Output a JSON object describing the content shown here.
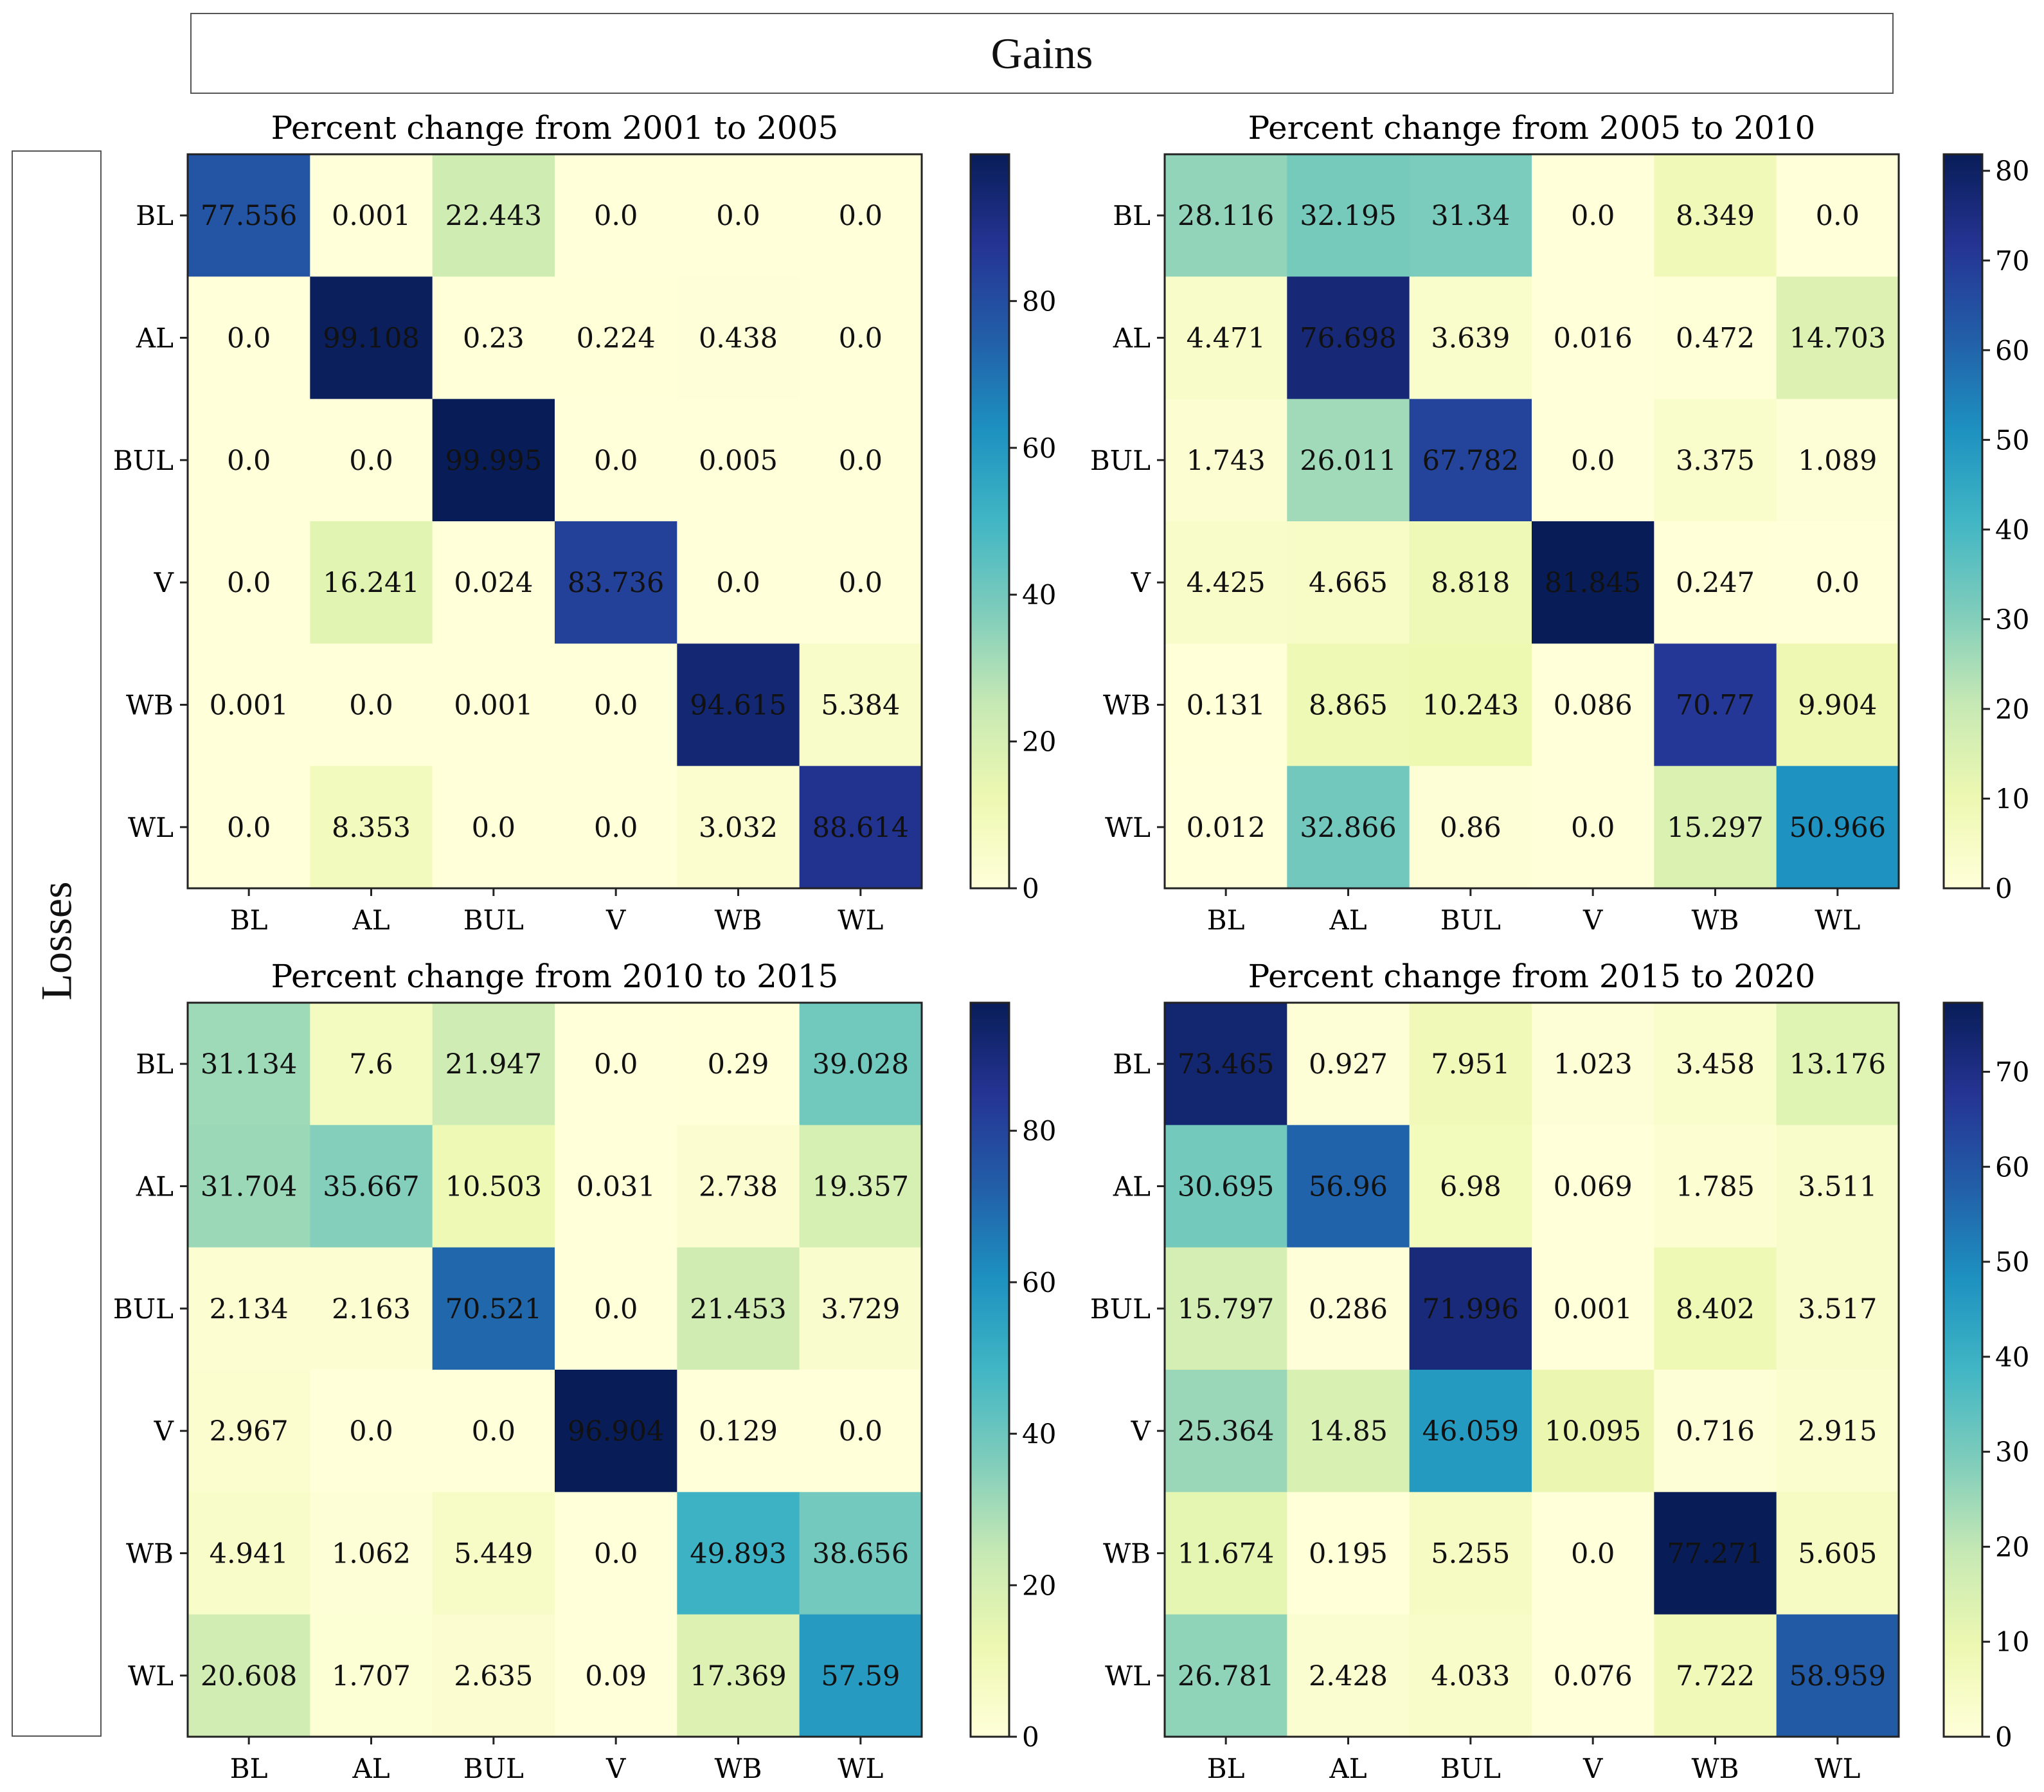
{
  "figure": {
    "gains_label": "Gains",
    "losses_label": "Losses"
  },
  "chart_data": [
    {
      "type": "heatmap",
      "title": "Percent change from 2001 to 2005",
      "x_categories": [
        "BL",
        "AL",
        "BUL",
        "V",
        "WB",
        "WL"
      ],
      "y_categories": [
        "BL",
        "AL",
        "BUL",
        "V",
        "WB",
        "WL"
      ],
      "value_labels": [
        [
          "77.556",
          "0.001",
          "22.443",
          "0.0",
          "0.0",
          "0.0"
        ],
        [
          "0.0",
          "99.108",
          "0.23",
          "0.224",
          "0.438",
          "0.0"
        ],
        [
          "0.0",
          "0.0",
          "99.995",
          "0.0",
          "0.005",
          "0.0"
        ],
        [
          "0.0",
          "16.241",
          "0.024",
          "83.736",
          "0.0",
          "0.0"
        ],
        [
          "0.001",
          "0.0",
          "0.001",
          "0.0",
          "94.615",
          "5.384"
        ],
        [
          "0.0",
          "8.353",
          "0.0",
          "0.0",
          "3.032",
          "88.614"
        ]
      ],
      "colorbar": {
        "min": 0,
        "max": 99.995,
        "ticks": [
          "0",
          "20",
          "40",
          "60",
          "80"
        ],
        "colormap": "YlGnBu"
      }
    },
    {
      "type": "heatmap",
      "title": "Percent change from 2005 to 2010",
      "x_categories": [
        "BL",
        "AL",
        "BUL",
        "V",
        "WB",
        "WL"
      ],
      "y_categories": [
        "BL",
        "AL",
        "BUL",
        "V",
        "WB",
        "WL"
      ],
      "value_labels": [
        [
          "28.116",
          "32.195",
          "31.34",
          "0.0",
          "8.349",
          "0.0"
        ],
        [
          "4.471",
          "76.698",
          "3.639",
          "0.016",
          "0.472",
          "14.703"
        ],
        [
          "1.743",
          "26.011",
          "67.782",
          "0.0",
          "3.375",
          "1.089"
        ],
        [
          "4.425",
          "4.665",
          "8.818",
          "81.845",
          "0.247",
          "0.0"
        ],
        [
          "0.131",
          "8.865",
          "10.243",
          "0.086",
          "70.77",
          "9.904"
        ],
        [
          "0.012",
          "32.866",
          "0.86",
          "0.0",
          "15.297",
          "50.966"
        ]
      ],
      "colorbar": {
        "min": 0,
        "max": 81.845,
        "ticks": [
          "0",
          "10",
          "20",
          "30",
          "40",
          "50",
          "60",
          "70",
          "80"
        ],
        "colormap": "YlGnBu"
      }
    },
    {
      "type": "heatmap",
      "title": "Percent change from 2010 to 2015",
      "x_categories": [
        "BL",
        "AL",
        "BUL",
        "V",
        "WB",
        "WL"
      ],
      "y_categories": [
        "BL",
        "AL",
        "BUL",
        "V",
        "WB",
        "WL"
      ],
      "value_labels": [
        [
          "31.134",
          "7.6",
          "21.947",
          "0.0",
          "0.29",
          "39.028"
        ],
        [
          "31.704",
          "35.667",
          "10.503",
          "0.031",
          "2.738",
          "19.357"
        ],
        [
          "2.134",
          "2.163",
          "70.521",
          "0.0",
          "21.453",
          "3.729"
        ],
        [
          "2.967",
          "0.0",
          "0.0",
          "96.904",
          "0.129",
          "0.0"
        ],
        [
          "4.941",
          "1.062",
          "5.449",
          "0.0",
          "49.893",
          "38.656"
        ],
        [
          "20.608",
          "1.707",
          "2.635",
          "0.09",
          "17.369",
          "57.59"
        ]
      ],
      "colorbar": {
        "min": 0,
        "max": 96.904,
        "ticks": [
          "0",
          "20",
          "40",
          "60",
          "80"
        ],
        "colormap": "YlGnBu"
      }
    },
    {
      "type": "heatmap",
      "title": "Percent change from 2015 to 2020",
      "x_categories": [
        "BL",
        "AL",
        "BUL",
        "V",
        "WB",
        "WL"
      ],
      "y_categories": [
        "BL",
        "AL",
        "BUL",
        "V",
        "WB",
        "WL"
      ],
      "value_labels": [
        [
          "73.465",
          "0.927",
          "7.951",
          "1.023",
          "3.458",
          "13.176"
        ],
        [
          "30.695",
          "56.96",
          "6.98",
          "0.069",
          "1.785",
          "3.511"
        ],
        [
          "15.797",
          "0.286",
          "71.996",
          "0.001",
          "8.402",
          "3.517"
        ],
        [
          "25.364",
          "14.85",
          "46.059",
          "10.095",
          "0.716",
          "2.915"
        ],
        [
          "11.674",
          "0.195",
          "5.255",
          "0.0",
          "77.271",
          "5.605"
        ],
        [
          "26.781",
          "2.428",
          "4.033",
          "0.076",
          "7.722",
          "58.959"
        ]
      ],
      "colorbar": {
        "min": 0,
        "max": 77.271,
        "ticks": [
          "0",
          "10",
          "20",
          "30",
          "40",
          "50",
          "60",
          "70"
        ],
        "colormap": "YlGnBu"
      }
    }
  ]
}
